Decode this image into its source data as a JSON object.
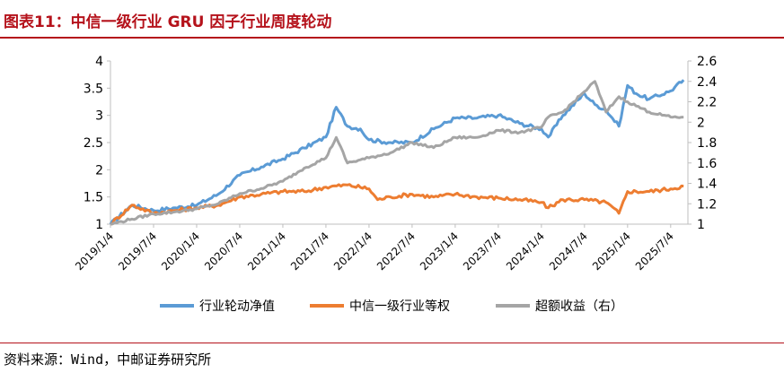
{
  "header": {
    "title": "图表11：中信一级行业 GRU 因子行业周度轮动"
  },
  "footer": {
    "source": "资料来源：Wind，中邮证券研究所"
  },
  "chart_data": {
    "type": "line",
    "x_ticks": [
      "2019/1/4",
      "2019/7/4",
      "2020/1/4",
      "2020/7/4",
      "2021/1/4",
      "2021/7/4",
      "2022/1/4",
      "2022/7/4",
      "2023/1/4",
      "2023/7/4",
      "2024/1/4",
      "2024/7/4",
      "2025/1/4",
      "2025/7/4"
    ],
    "y_left": {
      "ticks": [
        "1",
        "1.5",
        "2",
        "2.5",
        "3",
        "3.5",
        "4"
      ],
      "ylim": [
        1,
        4
      ]
    },
    "y_right": {
      "ticks": [
        "1",
        "1.2",
        "1.4",
        "1.6",
        "1.8",
        "2",
        "2.2",
        "2.4",
        "2.6"
      ],
      "ylim": [
        1,
        2.6
      ]
    },
    "grid": false,
    "legend_position": "bottom",
    "series": [
      {
        "name": "行业轮动净值",
        "axis": "left",
        "color": "#5b9bd5",
        "x": [
          2019.0,
          2019.25,
          2019.5,
          2019.75,
          2020.0,
          2020.25,
          2020.5,
          2020.75,
          2021.0,
          2021.25,
          2021.5,
          2021.62,
          2021.75,
          2021.9,
          2022.0,
          2022.25,
          2022.5,
          2022.75,
          2023.0,
          2023.25,
          2023.5,
          2023.75,
          2024.0,
          2024.08,
          2024.25,
          2024.5,
          2024.62,
          2024.75,
          2024.9,
          2025.0,
          2025.1,
          2025.25,
          2025.5,
          2025.65
        ],
        "values": [
          1.0,
          1.35,
          1.25,
          1.3,
          1.35,
          1.55,
          1.9,
          2.05,
          2.2,
          2.4,
          2.6,
          3.15,
          2.8,
          2.75,
          2.55,
          2.5,
          2.5,
          2.75,
          2.95,
          2.95,
          3.0,
          2.85,
          2.75,
          2.6,
          3.0,
          3.4,
          3.2,
          3.1,
          2.8,
          3.55,
          3.4,
          3.3,
          3.45,
          3.65
        ]
      },
      {
        "name": "中信一级行业等权",
        "axis": "left",
        "color": "#ed7d31",
        "x": [
          2019.0,
          2019.25,
          2019.5,
          2019.75,
          2020.0,
          2020.25,
          2020.5,
          2020.75,
          2021.0,
          2021.25,
          2021.5,
          2021.75,
          2022.0,
          2022.1,
          2022.25,
          2022.5,
          2022.75,
          2023.0,
          2023.25,
          2023.5,
          2023.75,
          2024.0,
          2024.08,
          2024.25,
          2024.5,
          2024.75,
          2024.9,
          2025.0,
          2025.25,
          2025.5,
          2025.65
        ],
        "values": [
          1.0,
          1.35,
          1.2,
          1.25,
          1.3,
          1.35,
          1.5,
          1.55,
          1.6,
          1.6,
          1.68,
          1.72,
          1.65,
          1.45,
          1.5,
          1.55,
          1.5,
          1.55,
          1.5,
          1.48,
          1.45,
          1.4,
          1.3,
          1.45,
          1.45,
          1.4,
          1.2,
          1.6,
          1.6,
          1.65,
          1.7
        ]
      },
      {
        "name": "超额收益（右）",
        "axis": "right",
        "color": "#a5a5a5",
        "x": [
          2019.0,
          2019.25,
          2019.5,
          2019.75,
          2020.0,
          2020.25,
          2020.5,
          2020.75,
          2021.0,
          2021.25,
          2021.5,
          2021.62,
          2021.75,
          2022.0,
          2022.25,
          2022.5,
          2022.75,
          2023.0,
          2023.25,
          2023.5,
          2023.75,
          2024.0,
          2024.08,
          2024.25,
          2024.5,
          2024.62,
          2024.75,
          2024.9,
          2025.0,
          2025.25,
          2025.5,
          2025.65
        ],
        "values": [
          1.0,
          1.05,
          1.1,
          1.12,
          1.15,
          1.2,
          1.3,
          1.35,
          1.42,
          1.55,
          1.65,
          1.85,
          1.6,
          1.65,
          1.7,
          1.8,
          1.75,
          1.85,
          1.85,
          1.92,
          1.9,
          1.95,
          2.05,
          2.1,
          2.3,
          2.4,
          2.1,
          2.25,
          2.2,
          2.1,
          2.05,
          2.05
        ]
      }
    ]
  }
}
